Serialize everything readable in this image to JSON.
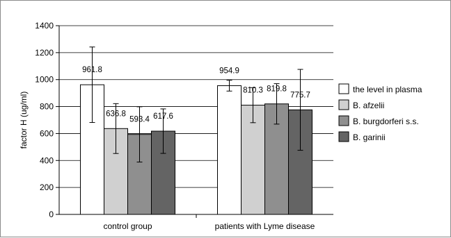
{
  "chart_data": {
    "type": "bar",
    "title": "",
    "xlabel": "",
    "ylabel": "factor H (ug/ml)",
    "ylim": [
      0,
      1400
    ],
    "yticks": [
      0,
      200,
      400,
      600,
      800,
      1000,
      1200,
      1400
    ],
    "grid": true,
    "legend_position": "right",
    "categories": [
      "control group",
      "patients with Lyme disease"
    ],
    "series": [
      {
        "name": "the level in plasma",
        "color": "#ffffff",
        "values": [
          961.8,
          954.9
        ],
        "errors": [
          280,
          40
        ]
      },
      {
        "name": "B. afzelii",
        "color": "#d0d0d0",
        "values": [
          636.8,
          810.3
        ],
        "errors": [
          185,
          130
        ]
      },
      {
        "name": "B. burgdorferi s.s.",
        "color": "#8f8f8f",
        "values": [
          593.4,
          819.8
        ],
        "errors": [
          205,
          150
        ]
      },
      {
        "name": "B. garinii",
        "color": "#646464",
        "values": [
          617.6,
          775.7
        ],
        "errors": [
          165,
          300
        ]
      }
    ],
    "value_labels": [
      [
        "961.8",
        "954.9"
      ],
      [
        "636.8",
        "810.3"
      ],
      [
        "593.4",
        "819.8"
      ],
      [
        "617.6",
        "775.7"
      ]
    ]
  }
}
